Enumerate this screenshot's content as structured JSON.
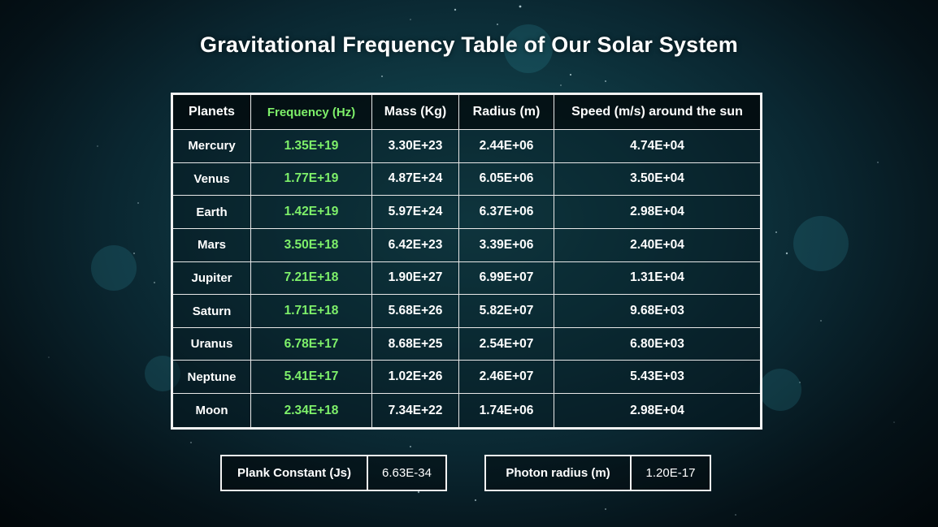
{
  "title": "Gravitational Frequency Table of Our Solar System",
  "table": {
    "headers": [
      "Planets",
      "Frequency (Hz)",
      "Mass (Kg)",
      "Radius (m)",
      "Speed (m/s) around the sun"
    ],
    "rows": [
      [
        "Mercury",
        "1.35E+19",
        "3.30E+23",
        "2.44E+06",
        "4.74E+04"
      ],
      [
        "Venus",
        "1.77E+19",
        "4.87E+24",
        "6.05E+06",
        "3.50E+04"
      ],
      [
        "Earth",
        "1.42E+19",
        "5.97E+24",
        "6.37E+06",
        "2.98E+04"
      ],
      [
        "Mars",
        "3.50E+18",
        "6.42E+23",
        "3.39E+06",
        "2.40E+04"
      ],
      [
        "Jupiter",
        "7.21E+18",
        "1.90E+27",
        "6.99E+07",
        "1.31E+04"
      ],
      [
        "Saturn",
        "1.71E+18",
        "5.68E+26",
        "5.82E+07",
        "9.68E+03"
      ],
      [
        "Uranus",
        "6.78E+17",
        "8.68E+25",
        "2.54E+07",
        "6.80E+03"
      ],
      [
        "Neptune",
        "5.41E+17",
        "1.02E+26",
        "2.46E+07",
        "5.43E+03"
      ],
      [
        "Moon",
        "2.34E+18",
        "7.34E+22",
        "1.74E+06",
        "2.98E+04"
      ]
    ]
  },
  "constants": {
    "plank": {
      "label": "Plank Constant (Js)",
      "value": "6.63E-34"
    },
    "photon": {
      "label": "Photon radius (m)",
      "value": "1.20E-17"
    }
  },
  "colors": {
    "frequency_text": "#7ef06a",
    "background": "#0f3a44",
    "border": "#f2f2f2"
  }
}
